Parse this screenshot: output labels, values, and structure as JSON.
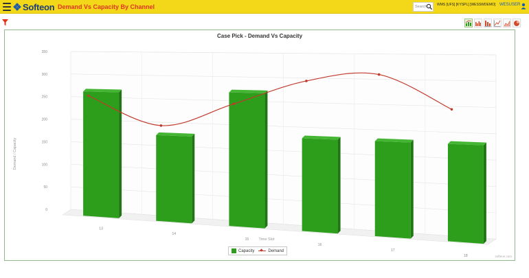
{
  "header": {
    "logo_text": "Softeon",
    "page_title": "Demand Vs Capacity By Channel",
    "search_placeholder": "Search",
    "environment": "WMS [UFS] [KYSPL] [WESSWDEMO]",
    "user": "WESUSER",
    "background_color": "#f3d81a"
  },
  "toolbar": {
    "filter_icon": "filter-icon",
    "chart_tools": [
      "combo-chart-icon",
      "grouped-bar-chart-icon",
      "stacked-bar-chart-icon",
      "line-chart-icon",
      "area-chart-icon",
      "pie-chart-icon"
    ]
  },
  "chart_data": {
    "type": "bar",
    "title": "Case Pick - Demand Vs Capacity",
    "xlabel": "Time Slot",
    "ylabel": "Demand / Capacity",
    "categories": [
      "13",
      "14",
      "15",
      "16",
      "17",
      "18"
    ],
    "ylim": [
      0,
      350
    ],
    "yticks": [
      0,
      50,
      100,
      150,
      200,
      250,
      300,
      350
    ],
    "series": [
      {
        "name": "Capacity",
        "type": "bar",
        "color": "#2d9e1c",
        "values": [
          265,
          175,
          270,
          180,
          180,
          180
        ]
      },
      {
        "name": "Demand",
        "type": "line",
        "color": "#c0392b",
        "values": [
          260,
          200,
          250,
          300,
          315,
          250
        ]
      }
    ],
    "legend_position": "bottom-center",
    "grid": true,
    "three_d": true
  },
  "credit": "softeon.com"
}
